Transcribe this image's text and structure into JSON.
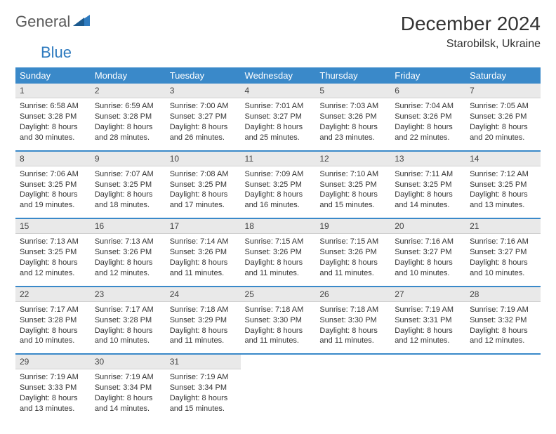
{
  "logo": {
    "general": "General",
    "blue": "Blue"
  },
  "title": "December 2024",
  "location": "Starobilsk, Ukraine",
  "header_bg": "#3a89c9",
  "header_fg": "#ffffff",
  "daynum_bg": "#e9e9e9",
  "divider_color": "#3a89c9",
  "text_color": "#333333",
  "font_size_body": 11,
  "day_names": [
    "Sunday",
    "Monday",
    "Tuesday",
    "Wednesday",
    "Thursday",
    "Friday",
    "Saturday"
  ],
  "weeks": [
    [
      {
        "n": "1",
        "sr": "6:58 AM",
        "ss": "3:28 PM",
        "dl": "8 hours and 30 minutes."
      },
      {
        "n": "2",
        "sr": "6:59 AM",
        "ss": "3:28 PM",
        "dl": "8 hours and 28 minutes."
      },
      {
        "n": "3",
        "sr": "7:00 AM",
        "ss": "3:27 PM",
        "dl": "8 hours and 26 minutes."
      },
      {
        "n": "4",
        "sr": "7:01 AM",
        "ss": "3:27 PM",
        "dl": "8 hours and 25 minutes."
      },
      {
        "n": "5",
        "sr": "7:03 AM",
        "ss": "3:26 PM",
        "dl": "8 hours and 23 minutes."
      },
      {
        "n": "6",
        "sr": "7:04 AM",
        "ss": "3:26 PM",
        "dl": "8 hours and 22 minutes."
      },
      {
        "n": "7",
        "sr": "7:05 AM",
        "ss": "3:26 PM",
        "dl": "8 hours and 20 minutes."
      }
    ],
    [
      {
        "n": "8",
        "sr": "7:06 AM",
        "ss": "3:25 PM",
        "dl": "8 hours and 19 minutes."
      },
      {
        "n": "9",
        "sr": "7:07 AM",
        "ss": "3:25 PM",
        "dl": "8 hours and 18 minutes."
      },
      {
        "n": "10",
        "sr": "7:08 AM",
        "ss": "3:25 PM",
        "dl": "8 hours and 17 minutes."
      },
      {
        "n": "11",
        "sr": "7:09 AM",
        "ss": "3:25 PM",
        "dl": "8 hours and 16 minutes."
      },
      {
        "n": "12",
        "sr": "7:10 AM",
        "ss": "3:25 PM",
        "dl": "8 hours and 15 minutes."
      },
      {
        "n": "13",
        "sr": "7:11 AM",
        "ss": "3:25 PM",
        "dl": "8 hours and 14 minutes."
      },
      {
        "n": "14",
        "sr": "7:12 AM",
        "ss": "3:25 PM",
        "dl": "8 hours and 13 minutes."
      }
    ],
    [
      {
        "n": "15",
        "sr": "7:13 AM",
        "ss": "3:25 PM",
        "dl": "8 hours and 12 minutes."
      },
      {
        "n": "16",
        "sr": "7:13 AM",
        "ss": "3:26 PM",
        "dl": "8 hours and 12 minutes."
      },
      {
        "n": "17",
        "sr": "7:14 AM",
        "ss": "3:26 PM",
        "dl": "8 hours and 11 minutes."
      },
      {
        "n": "18",
        "sr": "7:15 AM",
        "ss": "3:26 PM",
        "dl": "8 hours and 11 minutes."
      },
      {
        "n": "19",
        "sr": "7:15 AM",
        "ss": "3:26 PM",
        "dl": "8 hours and 11 minutes."
      },
      {
        "n": "20",
        "sr": "7:16 AM",
        "ss": "3:27 PM",
        "dl": "8 hours and 10 minutes."
      },
      {
        "n": "21",
        "sr": "7:16 AM",
        "ss": "3:27 PM",
        "dl": "8 hours and 10 minutes."
      }
    ],
    [
      {
        "n": "22",
        "sr": "7:17 AM",
        "ss": "3:28 PM",
        "dl": "8 hours and 10 minutes."
      },
      {
        "n": "23",
        "sr": "7:17 AM",
        "ss": "3:28 PM",
        "dl": "8 hours and 10 minutes."
      },
      {
        "n": "24",
        "sr": "7:18 AM",
        "ss": "3:29 PM",
        "dl": "8 hours and 11 minutes."
      },
      {
        "n": "25",
        "sr": "7:18 AM",
        "ss": "3:30 PM",
        "dl": "8 hours and 11 minutes."
      },
      {
        "n": "26",
        "sr": "7:18 AM",
        "ss": "3:30 PM",
        "dl": "8 hours and 11 minutes."
      },
      {
        "n": "27",
        "sr": "7:19 AM",
        "ss": "3:31 PM",
        "dl": "8 hours and 12 minutes."
      },
      {
        "n": "28",
        "sr": "7:19 AM",
        "ss": "3:32 PM",
        "dl": "8 hours and 12 minutes."
      }
    ],
    [
      {
        "n": "29",
        "sr": "7:19 AM",
        "ss": "3:33 PM",
        "dl": "8 hours and 13 minutes."
      },
      {
        "n": "30",
        "sr": "7:19 AM",
        "ss": "3:34 PM",
        "dl": "8 hours and 14 minutes."
      },
      {
        "n": "31",
        "sr": "7:19 AM",
        "ss": "3:34 PM",
        "dl": "8 hours and 15 minutes."
      },
      null,
      null,
      null,
      null
    ]
  ],
  "labels": {
    "sunrise": "Sunrise: ",
    "sunset": "Sunset: ",
    "daylight": "Daylight: "
  }
}
